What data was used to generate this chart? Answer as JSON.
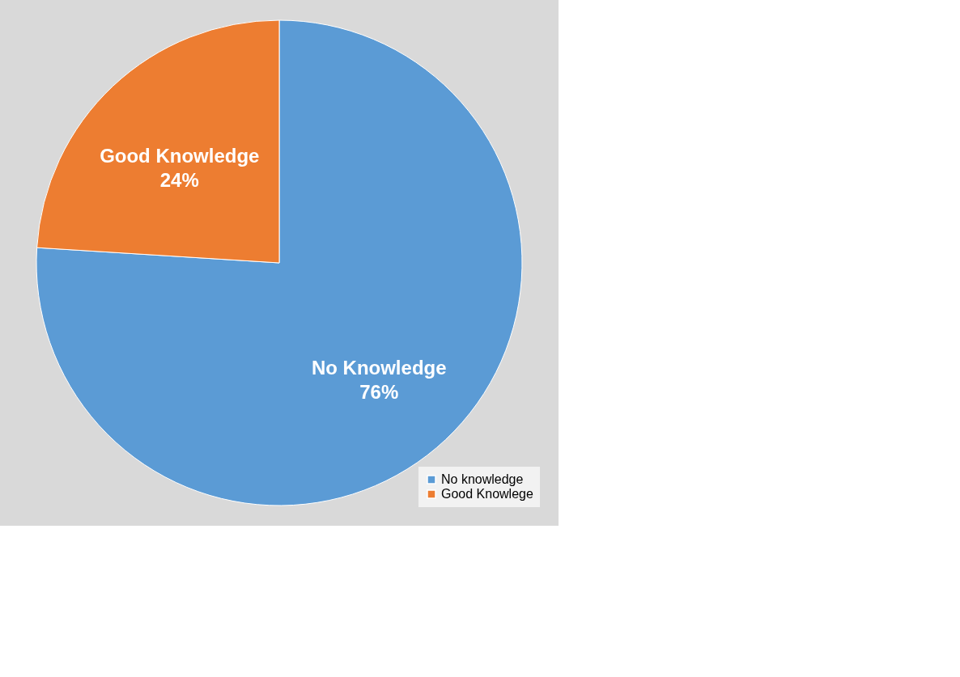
{
  "chart_data": {
    "type": "pie",
    "categories": [
      "No knowledge",
      "Good Knowlege"
    ],
    "values": [
      76,
      24
    ],
    "colors": [
      "#5b9bd5",
      "#ed7d31"
    ],
    "value_labels": [
      "No Knowledge\n76%",
      "Good Knowledge\n24%"
    ],
    "legend": "bottom right"
  }
}
